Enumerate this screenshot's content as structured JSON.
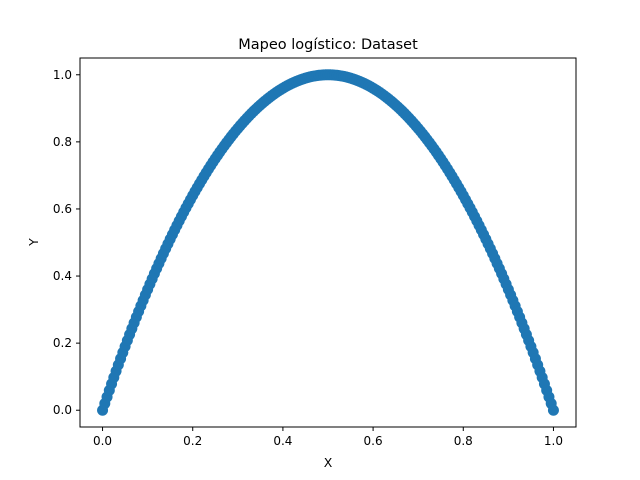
{
  "chart_data": {
    "type": "scatter",
    "title": "Mapeo logístico: Dataset",
    "xlabel": "X",
    "ylabel": "Y",
    "xlim": [
      -0.05,
      1.05
    ],
    "ylim": [
      -0.05,
      1.05
    ],
    "x_ticks": [
      0.0,
      0.2,
      0.4,
      0.6,
      0.8,
      1.0
    ],
    "y_ticks": [
      0.0,
      0.2,
      0.4,
      0.6,
      0.8,
      1.0
    ],
    "x_tick_labels": [
      "0.0",
      "0.2",
      "0.4",
      "0.6",
      "0.8",
      "1.0"
    ],
    "y_tick_labels": [
      "0.0",
      "0.2",
      "0.4",
      "0.6",
      "0.8",
      "1.0"
    ],
    "grid": false,
    "marker_color": "#1f77b4",
    "series": [
      {
        "x": [
          0.0,
          0.005,
          0.01,
          0.015,
          0.02,
          0.025,
          0.03,
          0.035,
          0.04,
          0.045,
          0.05,
          0.055,
          0.06,
          0.065,
          0.07,
          0.075,
          0.08,
          0.085,
          0.09,
          0.095,
          0.1,
          0.105,
          0.11,
          0.115,
          0.12,
          0.125,
          0.13,
          0.135,
          0.14,
          0.145,
          0.15,
          0.155,
          0.16,
          0.165,
          0.17,
          0.175,
          0.18,
          0.185,
          0.19,
          0.195,
          0.2,
          0.205,
          0.21,
          0.215,
          0.22,
          0.225,
          0.23,
          0.235,
          0.24,
          0.245,
          0.25,
          0.255,
          0.26,
          0.265,
          0.27,
          0.275,
          0.28,
          0.285,
          0.29,
          0.295,
          0.3,
          0.305,
          0.31,
          0.315,
          0.32,
          0.325,
          0.33,
          0.335,
          0.34,
          0.345,
          0.35,
          0.355,
          0.36,
          0.365,
          0.37,
          0.375,
          0.38,
          0.385,
          0.39,
          0.395,
          0.4,
          0.405,
          0.41,
          0.415,
          0.42,
          0.425,
          0.43,
          0.435,
          0.44,
          0.445,
          0.45,
          0.455,
          0.46,
          0.465,
          0.47,
          0.475,
          0.48,
          0.485,
          0.49,
          0.495,
          0.5,
          0.505,
          0.51,
          0.515,
          0.52,
          0.525,
          0.53,
          0.535,
          0.54,
          0.545,
          0.55,
          0.555,
          0.56,
          0.565,
          0.57,
          0.575,
          0.58,
          0.585,
          0.59,
          0.595,
          0.6,
          0.605,
          0.61,
          0.615,
          0.62,
          0.625,
          0.63,
          0.635,
          0.64,
          0.645,
          0.65,
          0.655,
          0.66,
          0.665,
          0.67,
          0.675,
          0.68,
          0.685,
          0.69,
          0.695,
          0.7,
          0.705,
          0.71,
          0.715,
          0.72,
          0.725,
          0.73,
          0.735,
          0.74,
          0.745,
          0.75,
          0.755,
          0.76,
          0.765,
          0.77,
          0.775,
          0.78,
          0.785,
          0.79,
          0.795,
          0.8,
          0.805,
          0.81,
          0.815,
          0.82,
          0.825,
          0.83,
          0.835,
          0.84,
          0.845,
          0.85,
          0.855,
          0.86,
          0.865,
          0.87,
          0.875,
          0.88,
          0.885,
          0.89,
          0.895,
          0.9,
          0.905,
          0.91,
          0.915,
          0.92,
          0.925,
          0.93,
          0.935,
          0.94,
          0.945,
          0.95,
          0.955,
          0.96,
          0.965,
          0.97,
          0.975,
          0.98,
          0.985,
          0.99,
          0.995,
          1.0
        ],
        "y": [
          0.0,
          0.0199,
          0.0396,
          0.0591,
          0.0784,
          0.0975,
          0.1164,
          0.1351,
          0.1536,
          0.1719,
          0.19,
          0.2079,
          0.2256,
          0.2431,
          0.2604,
          0.2775,
          0.2944,
          0.3111,
          0.3276,
          0.3439,
          0.36,
          0.3759,
          0.3916,
          0.4071,
          0.4224,
          0.4375,
          0.4524,
          0.4671,
          0.4816,
          0.4959,
          0.51,
          0.5239,
          0.5376,
          0.5511,
          0.5644,
          0.5775,
          0.5904,
          0.6031,
          0.6156,
          0.6279,
          0.64,
          0.6519,
          0.6636,
          0.6751,
          0.6864,
          0.6975,
          0.7084,
          0.7191,
          0.7296,
          0.7399,
          0.75,
          0.7599,
          0.7696,
          0.7791,
          0.7884,
          0.7975,
          0.8064,
          0.8151,
          0.8236,
          0.8319,
          0.84,
          0.8479,
          0.8556,
          0.8631,
          0.8704,
          0.8775,
          0.8844,
          0.8911,
          0.8976,
          0.9039,
          0.91,
          0.9159,
          0.9216,
          0.9271,
          0.9324,
          0.9375,
          0.9424,
          0.9471,
          0.9516,
          0.9559,
          0.96,
          0.9639,
          0.9676,
          0.9711,
          0.9744,
          0.9775,
          0.9804,
          0.9831,
          0.9856,
          0.9879,
          0.99,
          0.9919,
          0.9936,
          0.9951,
          0.9964,
          0.9975,
          0.9984,
          0.9991,
          0.9996,
          0.9999,
          1.0,
          0.9999,
          0.9996,
          0.9991,
          0.9984,
          0.9975,
          0.9964,
          0.9951,
          0.9936,
          0.9919,
          0.99,
          0.9879,
          0.9856,
          0.9831,
          0.9804,
          0.9775,
          0.9744,
          0.9711,
          0.9676,
          0.9639,
          0.96,
          0.9559,
          0.9516,
          0.9471,
          0.9424,
          0.9375,
          0.9324,
          0.9271,
          0.9216,
          0.9159,
          0.91,
          0.9039,
          0.8976,
          0.8911,
          0.8844,
          0.8775,
          0.8704,
          0.8631,
          0.8556,
          0.8479,
          0.84,
          0.8319,
          0.8236,
          0.8151,
          0.8064,
          0.7975,
          0.7884,
          0.7791,
          0.7696,
          0.7599,
          0.75,
          0.7399,
          0.7296,
          0.7191,
          0.7084,
          0.6975,
          0.6864,
          0.6751,
          0.6636,
          0.6519,
          0.64,
          0.6279,
          0.6156,
          0.6031,
          0.5904,
          0.5775,
          0.5644,
          0.5511,
          0.5376,
          0.5239,
          0.51,
          0.4959,
          0.4816,
          0.4671,
          0.4524,
          0.4375,
          0.4224,
          0.4071,
          0.3916,
          0.3759,
          0.36,
          0.3439,
          0.3276,
          0.3111,
          0.2944,
          0.2775,
          0.2604,
          0.2431,
          0.2256,
          0.2079,
          0.19,
          0.1719,
          0.1536,
          0.1351,
          0.1164,
          0.0975,
          0.0784,
          0.0591,
          0.0396,
          0.0199,
          0.0
        ]
      }
    ]
  }
}
